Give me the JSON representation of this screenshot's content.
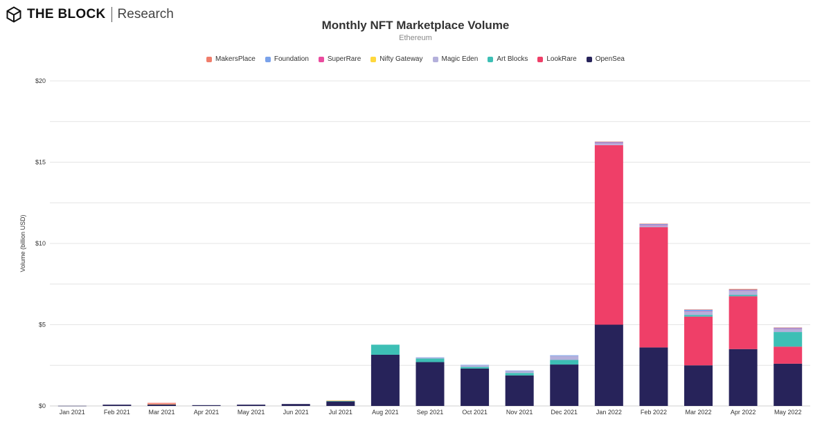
{
  "brand": {
    "name": "THE BLOCK",
    "sub": "Research"
  },
  "chart_data": {
    "type": "bar",
    "stacked": true,
    "title": "Monthly NFT Marketplace Volume",
    "subtitle": "Ethereum",
    "ylabel": "Volume (billion USD)",
    "xlabel": "",
    "ylim": [
      0,
      20
    ],
    "yticks": [
      0,
      5,
      10,
      15,
      20
    ],
    "ytick_labels": [
      "$0",
      "$5",
      "$10",
      "$15",
      "$20"
    ],
    "grid": true,
    "legend_position": "top-center",
    "categories": [
      "Jan 2021",
      "Feb 2021",
      "Mar 2021",
      "Apr 2021",
      "May 2021",
      "Jun 2021",
      "Jul 2021",
      "Aug 2021",
      "Sep 2021",
      "Oct 2021",
      "Nov 2021",
      "Dec 2021",
      "Jan 2022",
      "Feb 2022",
      "Mar 2022",
      "Apr 2022",
      "May 2022"
    ],
    "legend_order": [
      "MakersPlace",
      "Foundation",
      "SuperRare",
      "Nifty Gateway",
      "Magic Eden",
      "Art Blocks",
      "LookRare",
      "OpenSea"
    ],
    "series": [
      {
        "name": "OpenSea",
        "color": "#27235a",
        "values": [
          0.01,
          0.08,
          0.09,
          0.05,
          0.08,
          0.12,
          0.28,
          3.15,
          2.7,
          2.3,
          1.88,
          2.55,
          5.0,
          3.6,
          2.5,
          3.5,
          2.6
        ]
      },
      {
        "name": "LookRare",
        "color": "#ef3f68",
        "values": [
          0,
          0,
          0,
          0,
          0,
          0,
          0,
          0,
          0,
          0,
          0,
          0,
          11.05,
          7.4,
          3.0,
          3.25,
          1.05
        ]
      },
      {
        "name": "Art Blocks",
        "color": "#3dbfb5",
        "values": [
          0,
          0,
          0,
          0,
          0,
          0,
          0.02,
          0.62,
          0.22,
          0.1,
          0.15,
          0.28,
          0,
          0,
          0.1,
          0.08,
          0.9
        ]
      },
      {
        "name": "Magic Eden",
        "color": "#b4b0db",
        "values": [
          0,
          0,
          0,
          0,
          0,
          0,
          0.02,
          0,
          0.05,
          0.1,
          0.12,
          0.25,
          0.12,
          0.13,
          0.2,
          0.25,
          0.2
        ]
      },
      {
        "name": "Nifty Gateway",
        "color": "#ffd83d",
        "values": [
          0,
          0,
          0.03,
          0,
          0,
          0,
          0.02,
          0,
          0,
          0,
          0,
          0,
          0,
          0,
          0,
          0,
          0
        ]
      },
      {
        "name": "SuperRare",
        "color": "#ea4c9f",
        "values": [
          0,
          0,
          0.02,
          0,
          0,
          0,
          0,
          0,
          0,
          0,
          0,
          0,
          0.02,
          0.02,
          0.02,
          0.02,
          0.02
        ]
      },
      {
        "name": "Foundation",
        "color": "#7aa2ea",
        "values": [
          0,
          0,
          0,
          0,
          0,
          0,
          0,
          0,
          0.02,
          0.03,
          0.03,
          0.04,
          0.05,
          0.05,
          0.1,
          0.05,
          0.04
        ]
      },
      {
        "name": "MakersPlace",
        "color": "#f07d6b",
        "values": [
          0,
          0,
          0.05,
          0,
          0,
          0,
          0,
          0,
          0,
          0,
          0,
          0,
          0.03,
          0.02,
          0.02,
          0.05,
          0.02
        ]
      }
    ]
  }
}
